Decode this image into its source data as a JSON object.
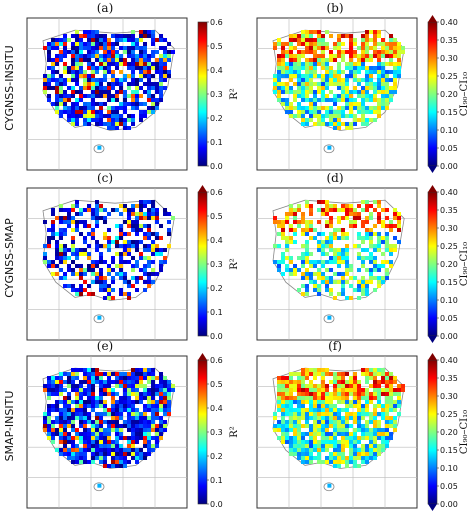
{
  "panels": [
    {
      "letter": "(a)",
      "metric": "r2",
      "density": 0.78
    },
    {
      "letter": "(b)",
      "metric": "ci",
      "density": 0.78
    },
    {
      "letter": "(c)",
      "metric": "r2",
      "density": 0.55
    },
    {
      "letter": "(d)",
      "metric": "ci",
      "density": 0.55
    },
    {
      "letter": "(e)",
      "metric": "r2",
      "density": 0.85
    },
    {
      "letter": "(f)",
      "metric": "ci",
      "density": 0.85
    }
  ],
  "row_labels": [
    "CYGNSS-INSITU",
    "CYGNSS-SMAP",
    "SMAP-INSITU"
  ],
  "colorbars": {
    "r2": {
      "title": "R²",
      "ticks": [
        "0.0",
        "0.1",
        "0.2",
        "0.3",
        "0.4",
        "0.5",
        "0.6"
      ],
      "min": 0.0,
      "max": 0.6
    },
    "ci": {
      "title": "CI₉₀–CI₁₀",
      "ticks": [
        "0.00",
        "0.05",
        "0.10",
        "0.15",
        "0.20",
        "0.25",
        "0.30",
        "0.35",
        "0.40"
      ],
      "min": 0.0,
      "max": 0.4
    }
  },
  "colors": {
    "colormap": [
      "#00007f",
      "#0000ff",
      "#007fff",
      "#00ffff",
      "#7fff7f",
      "#ffff00",
      "#ff7f00",
      "#ff0000",
      "#7f0000"
    ],
    "coastline": "#888888",
    "grid": "#bbbbbb"
  }
}
